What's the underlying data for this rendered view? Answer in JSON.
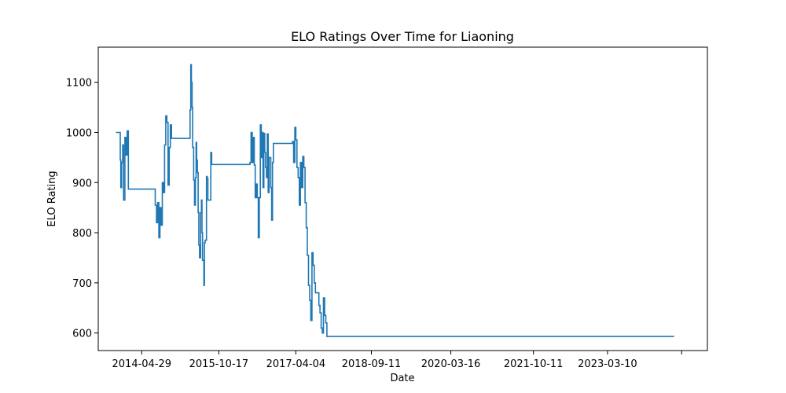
{
  "chart_data": {
    "type": "line",
    "title": "ELO Ratings Over Time for Liaoning",
    "xlabel": "Date",
    "ylabel": "ELO Rating",
    "x_ticks": [
      "2014-04-29",
      "2015-10-17",
      "2017-04-04",
      "2018-09-11",
      "2020-03-16",
      "2021-10-11",
      "2023-03-10"
    ],
    "y_ticks": [
      600,
      700,
      800,
      900,
      1000,
      1100
    ],
    "ylim": [
      565,
      1170
    ],
    "grid": false,
    "legend": "none",
    "step": true,
    "line_color": "#1f77b4",
    "series": [
      {
        "x": [
          "2013-11-01",
          "2013-12-01",
          "2013-12-05",
          "2013-12-10",
          "2013-12-18",
          "2013-12-24",
          "2014-01-02",
          "2014-01-10",
          "2014-01-18",
          "2014-01-26",
          "2014-02-03",
          "2014-02-15",
          "2014-03-05",
          "2014-04-01",
          "2014-05-01",
          "2014-06-15",
          "2014-07-20",
          "2014-08-01",
          "2014-08-10",
          "2014-08-18",
          "2014-08-26",
          "2014-09-03",
          "2014-09-11",
          "2014-09-19",
          "2014-09-27",
          "2014-10-05",
          "2014-10-13",
          "2014-10-21",
          "2014-10-29",
          "2014-11-06",
          "2014-11-14",
          "2014-11-22",
          "2014-11-30",
          "2014-12-08",
          "2014-12-16",
          "2014-12-24",
          "2015-01-01",
          "2015-01-10",
          "2015-02-15",
          "2015-03-20",
          "2015-03-31",
          "2015-04-05",
          "2015-04-09",
          "2015-04-14",
          "2015-04-18",
          "2015-04-25",
          "2015-05-01",
          "2015-05-07",
          "2015-05-12",
          "2015-05-16",
          "2015-05-21",
          "2015-05-26",
          "2015-05-31",
          "2015-06-05",
          "2015-06-12",
          "2015-06-18",
          "2015-06-22",
          "2015-06-26",
          "2015-06-30",
          "2015-07-05",
          "2015-07-09",
          "2015-07-14",
          "2015-07-19",
          "2015-07-23",
          "2015-07-28",
          "2015-08-02",
          "2015-08-09",
          "2015-08-16",
          "2015-08-22",
          "2015-08-28",
          "2015-09-04",
          "2015-09-12",
          "2015-09-20",
          "2015-10-01",
          "2015-10-20",
          "2015-11-20",
          "2016-02-01",
          "2016-05-20",
          "2016-05-28",
          "2016-06-05",
          "2016-06-12",
          "2016-06-19",
          "2016-06-26",
          "2016-07-03",
          "2016-07-10",
          "2016-07-17",
          "2016-07-24",
          "2016-07-31",
          "2016-08-07",
          "2016-08-13",
          "2016-08-19",
          "2016-08-25",
          "2016-08-31",
          "2016-09-06",
          "2016-09-12",
          "2016-09-18",
          "2016-09-24",
          "2016-09-30",
          "2016-10-06",
          "2016-10-12",
          "2016-10-18",
          "2016-10-24",
          "2016-10-30",
          "2016-11-05",
          "2016-11-12",
          "2016-11-20",
          "2017-03-05",
          "2017-03-12",
          "2017-03-20",
          "2017-03-28",
          "2017-04-04",
          "2017-04-12",
          "2017-04-20",
          "2017-04-28",
          "2017-05-06",
          "2017-05-14",
          "2017-05-22",
          "2017-05-30",
          "2017-06-07",
          "2017-06-15",
          "2017-06-23",
          "2017-07-01",
          "2017-07-09",
          "2017-07-17",
          "2017-07-25",
          "2017-08-02",
          "2017-08-10",
          "2017-08-18",
          "2017-08-26",
          "2017-09-03",
          "2017-09-11",
          "2017-09-19",
          "2017-09-27",
          "2017-10-05",
          "2017-10-13",
          "2017-10-21",
          "2017-10-29",
          "2017-11-06",
          "2017-11-14",
          "2017-11-22",
          "2017-11-30",
          "2017-12-08",
          "2017-12-16",
          "2017-12-24",
          "2024-06-15"
        ],
        "y": [
          1000,
          945,
          890,
          940,
          975,
          865,
          990,
          955,
          1003,
          887,
          887,
          887,
          887,
          887,
          887,
          887,
          887,
          855,
          820,
          860,
          790,
          850,
          815,
          900,
          880,
          975,
          1033,
          1020,
          895,
          970,
          1015,
          988,
          988,
          988,
          988,
          988,
          988,
          988,
          988,
          988,
          1045,
          1135,
          1100,
          1050,
          970,
          905,
          855,
          910,
          980,
          945,
          920,
          840,
          775,
          750,
          840,
          865,
          800,
          745,
          745,
          695,
          780,
          785,
          785,
          912,
          908,
          865,
          865,
          865,
          960,
          936,
          936,
          936,
          936,
          936,
          936,
          936,
          936,
          940,
          1000,
          940,
          990,
          935,
          870,
          897,
          870,
          790,
          870,
          1015,
          950,
          1000,
          890,
          998,
          960,
          930,
          910,
          997,
          880,
          950,
          950,
          890,
          825,
          940,
          978,
          978,
          978,
          978,
          978,
          982,
          940,
          1010,
          985,
          930,
          910,
          855,
          940,
          890,
          952,
          930,
          860,
          810,
          755,
          695,
          665,
          625,
          760,
          735,
          700,
          680,
          680,
          680,
          655,
          640,
          610,
          600,
          670,
          635,
          620,
          593,
          593,
          593,
          593,
          593,
          593,
          593,
          593
        ]
      }
    ]
  }
}
